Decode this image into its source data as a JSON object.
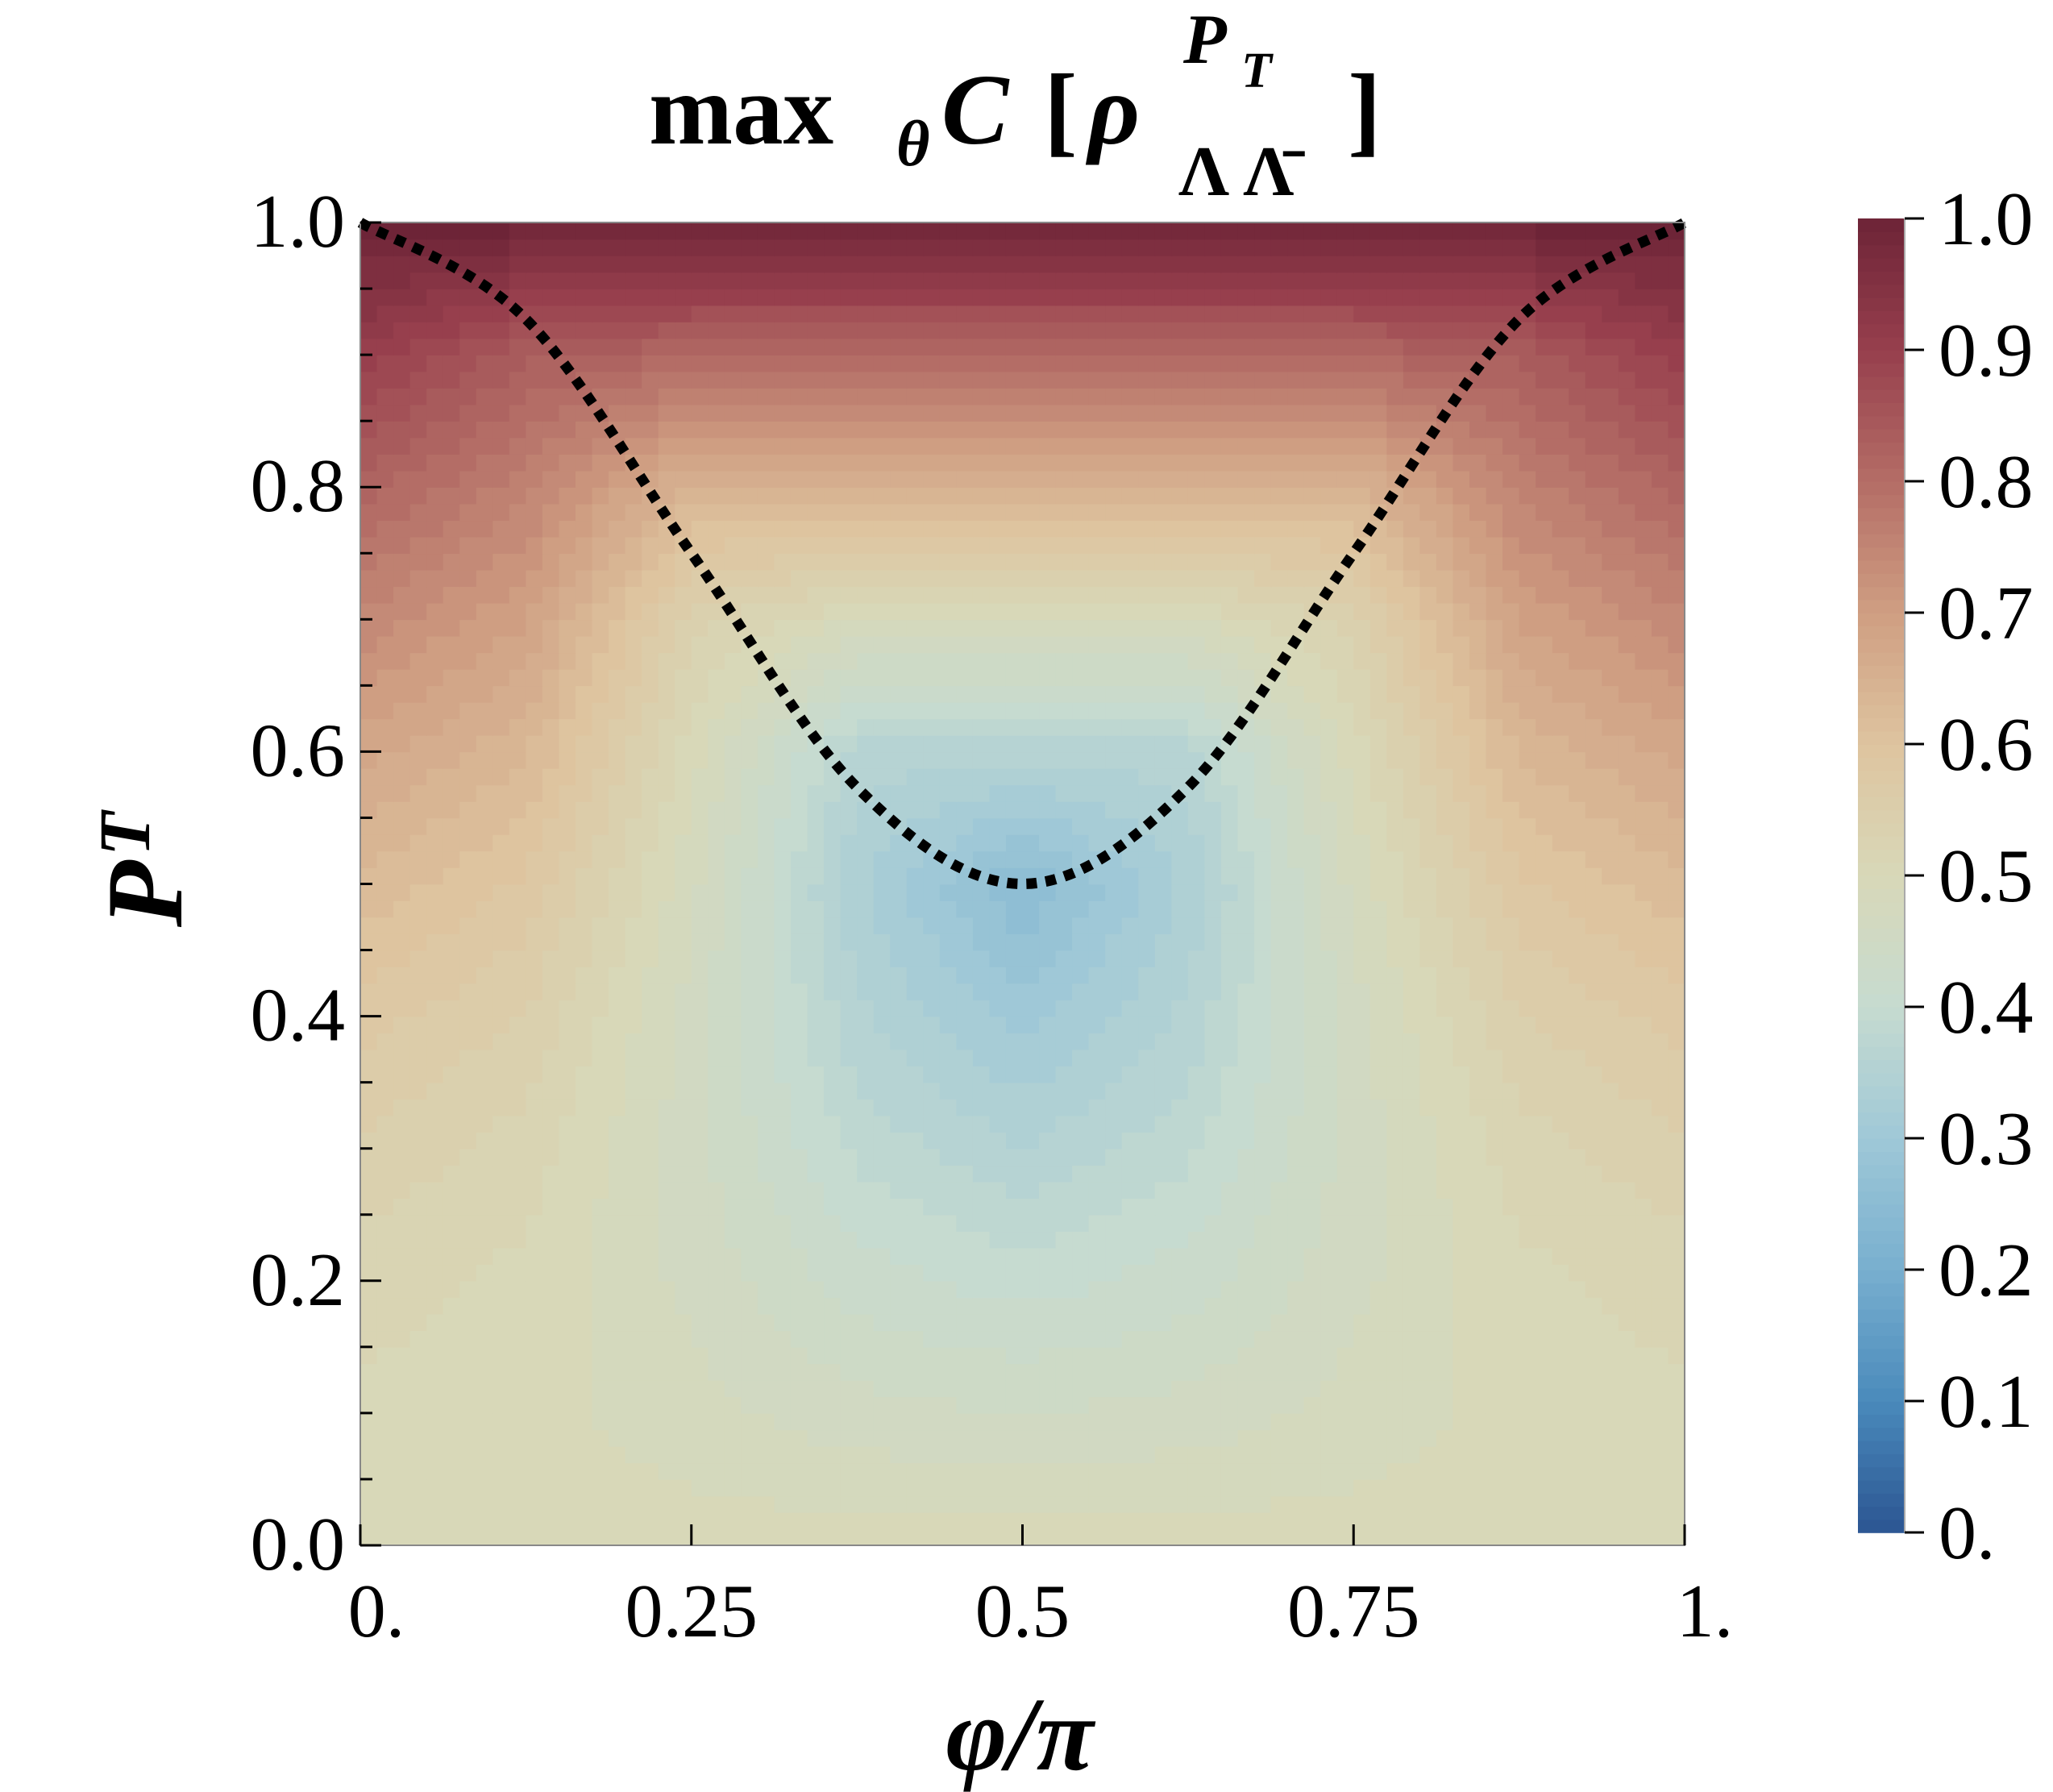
{
  "chart_data": {
    "type": "heatmap",
    "title": {
      "op": "max",
      "op_sub": "θ",
      "func": "C",
      "open": "[",
      "rho": "ρ",
      "sup_main": "P",
      "sup_sub": "T",
      "sub": "Λ Λ̄",
      "close": "]"
    },
    "xlabel": "φ/π",
    "ylabel": {
      "main": "P",
      "sub": "T"
    },
    "xlim": [
      0,
      1
    ],
    "ylim": [
      0,
      1
    ],
    "x_ticks": [
      {
        "value": 0,
        "label": "0."
      },
      {
        "value": 0.25,
        "label": "0.25"
      },
      {
        "value": 0.5,
        "label": "0.5"
      },
      {
        "value": 0.75,
        "label": "0.75"
      },
      {
        "value": 1,
        "label": "1."
      }
    ],
    "y_ticks": [
      {
        "value": 0,
        "label": "0.0"
      },
      {
        "value": 0.2,
        "label": "0.2"
      },
      {
        "value": 0.4,
        "label": "0.4"
      },
      {
        "value": 0.6,
        "label": "0.6"
      },
      {
        "value": 0.8,
        "label": "0.8"
      },
      {
        "value": 1,
        "label": "1.0"
      }
    ],
    "y_minor_step": 0.05,
    "x": [
      0,
      0.125,
      0.25,
      0.375,
      0.5,
      0.625,
      0.75,
      0.875,
      1
    ],
    "y": [
      0,
      0.1,
      0.2,
      0.3,
      0.4,
      0.5,
      0.6,
      0.7,
      0.8,
      0.9,
      1.0
    ],
    "z": [
      [
        0.5,
        0.5,
        0.5,
        0.5,
        0.5,
        0.5,
        0.5,
        0.5,
        0.5
      ],
      [
        0.505,
        0.497,
        0.478,
        0.458,
        0.45,
        0.458,
        0.478,
        0.497,
        0.505
      ],
      [
        0.52,
        0.504,
        0.464,
        0.42,
        0.4,
        0.42,
        0.464,
        0.504,
        0.52
      ],
      [
        0.545,
        0.521,
        0.458,
        0.385,
        0.35,
        0.385,
        0.458,
        0.521,
        0.545
      ],
      [
        0.58,
        0.548,
        0.462,
        0.355,
        0.3,
        0.355,
        0.462,
        0.548,
        0.58
      ],
      [
        0.625,
        0.585,
        0.476,
        0.333,
        0.25,
        0.333,
        0.476,
        0.585,
        0.625
      ],
      [
        0.68,
        0.633,
        0.501,
        0.36,
        0.36,
        0.36,
        0.501,
        0.633,
        0.68
      ],
      [
        0.745,
        0.691,
        0.537,
        0.49,
        0.49,
        0.49,
        0.537,
        0.691,
        0.745
      ],
      [
        0.82,
        0.759,
        0.64,
        0.64,
        0.64,
        0.64,
        0.64,
        0.759,
        0.82
      ],
      [
        0.905,
        0.836,
        0.81,
        0.81,
        0.81,
        0.81,
        0.81,
        0.836,
        0.905
      ],
      [
        1.0,
        1.0,
        1.0,
        1.0,
        1.0,
        1.0,
        1.0,
        1.0,
        1.0
      ]
    ],
    "curve": {
      "style": "dotted",
      "color": "#000000",
      "x": [
        0,
        0.125,
        0.25,
        0.375,
        0.5,
        0.625,
        0.75,
        0.875,
        1
      ],
      "y": [
        1.0,
        0.927,
        0.75,
        0.573,
        0.5,
        0.573,
        0.75,
        0.927,
        1.0
      ]
    },
    "colorbar": {
      "range": [
        0,
        1
      ],
      "ticks": [
        {
          "value": 0,
          "label": "0."
        },
        {
          "value": 0.1,
          "label": "0.1"
        },
        {
          "value": 0.2,
          "label": "0.2"
        },
        {
          "value": 0.3,
          "label": "0.3"
        },
        {
          "value": 0.4,
          "label": "0.4"
        },
        {
          "value": 0.5,
          "label": "0.5"
        },
        {
          "value": 0.6,
          "label": "0.6"
        },
        {
          "value": 0.7,
          "label": "0.7"
        },
        {
          "value": 0.8,
          "label": "0.8"
        },
        {
          "value": 0.9,
          "label": "0.9"
        },
        {
          "value": 1.0,
          "label": "1.0"
        }
      ],
      "colormap": [
        [
          0.0,
          "#2b5592"
        ],
        [
          0.1,
          "#4a8abb"
        ],
        [
          0.2,
          "#78afcf"
        ],
        [
          0.3,
          "#9fc8d7"
        ],
        [
          0.4,
          "#c6dbd0"
        ],
        [
          0.5,
          "#d8d8b8"
        ],
        [
          0.6,
          "#dec49f"
        ],
        [
          0.7,
          "#cf9e82"
        ],
        [
          0.8,
          "#b46d66"
        ],
        [
          0.9,
          "#973f4d"
        ],
        [
          1.0,
          "#6d2437"
        ]
      ]
    },
    "grid": false,
    "legend": "none"
  }
}
